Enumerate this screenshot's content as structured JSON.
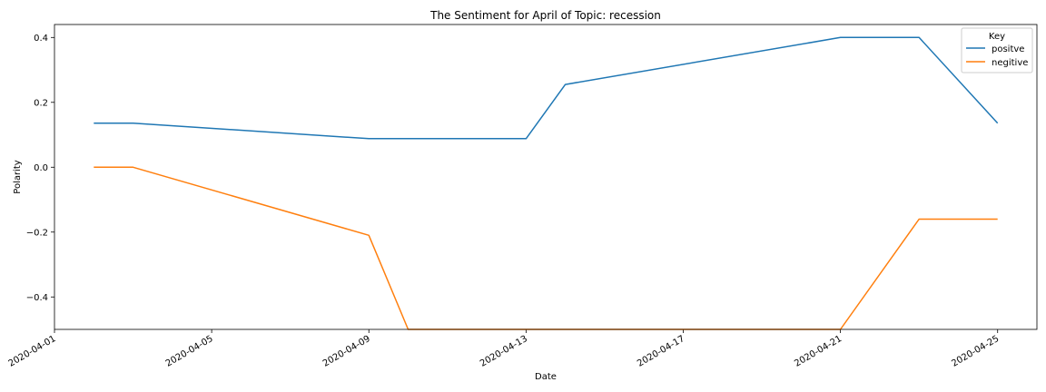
{
  "chart_data": {
    "type": "line",
    "title": "The Sentiment for April of Topic: recession",
    "xlabel": "Date",
    "ylabel": "Polarity",
    "x_range": [
      "2020-04-01",
      "2020-04-26"
    ],
    "ylim": [
      -0.5,
      0.44
    ],
    "x_ticks": [
      "2020-04-01",
      "2020-04-05",
      "2020-04-09",
      "2020-04-13",
      "2020-04-17",
      "2020-04-21",
      "2020-04-25"
    ],
    "y_ticks": [
      {
        "value": 0.4,
        "label": "0.4"
      },
      {
        "value": 0.2,
        "label": "0.2"
      },
      {
        "value": 0.0,
        "label": "0.0"
      },
      {
        "value": -0.2,
        "label": "−0.2"
      },
      {
        "value": -0.4,
        "label": "−0.4"
      }
    ],
    "legend": {
      "title": "Key",
      "position": "top-right"
    },
    "series": [
      {
        "name": "positve",
        "color": "#1f77b4",
        "points": [
          {
            "x": "2020-04-02",
            "y": 0.136
          },
          {
            "x": "2020-04-03",
            "y": 0.136
          },
          {
            "x": "2020-04-09",
            "y": 0.088
          },
          {
            "x": "2020-04-13",
            "y": 0.088
          },
          {
            "x": "2020-04-14",
            "y": 0.255
          },
          {
            "x": "2020-04-21",
            "y": 0.4
          },
          {
            "x": "2020-04-23",
            "y": 0.4
          },
          {
            "x": "2020-04-25",
            "y": 0.136
          }
        ]
      },
      {
        "name": "negitive",
        "color": "#ff7f0e",
        "points": [
          {
            "x": "2020-04-02",
            "y": 0.0
          },
          {
            "x": "2020-04-03",
            "y": 0.0
          },
          {
            "x": "2020-04-09",
            "y": -0.21
          },
          {
            "x": "2020-04-10",
            "y": -0.5
          },
          {
            "x": "2020-04-21",
            "y": -0.5
          },
          {
            "x": "2020-04-23",
            "y": -0.16
          },
          {
            "x": "2020-04-25",
            "y": -0.16
          }
        ]
      }
    ]
  }
}
